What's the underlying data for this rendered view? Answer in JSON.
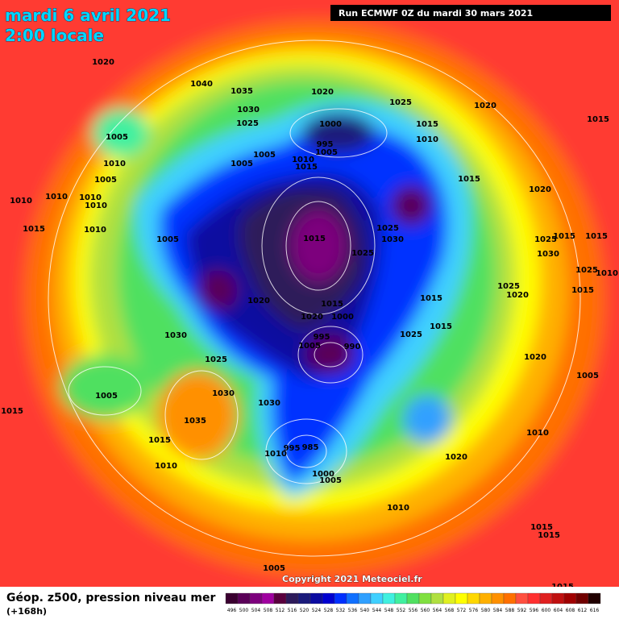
{
  "header": {
    "date": "mardi 6 avril 2021",
    "time": "2:00 locale",
    "run": "Run ECMWF 0Z du mardi 30 mars 2021"
  },
  "footer": {
    "title": "Géop. z500, pression niveau mer",
    "lead": "(+168h)",
    "copyright": "Copyright 2021 Meteociel.fr"
  },
  "legend": {
    "items": [
      {
        "value": 496,
        "color": "#3a0030"
      },
      {
        "value": 500,
        "color": "#5a0058"
      },
      {
        "value": 504,
        "color": "#7d007d"
      },
      {
        "value": 508,
        "color": "#a000a0"
      },
      {
        "value": 512,
        "color": "#5a003e"
      },
      {
        "value": 516,
        "color": "#2d1a5a"
      },
      {
        "value": 520,
        "color": "#1a1a7a"
      },
      {
        "value": 524,
        "color": "#0a0aa0"
      },
      {
        "value": 528,
        "color": "#0000d0"
      },
      {
        "value": 532,
        "color": "#0030ff"
      },
      {
        "value": 536,
        "color": "#1070ff"
      },
      {
        "value": 540,
        "color": "#30a0ff"
      },
      {
        "value": 544,
        "color": "#40d0ff"
      },
      {
        "value": 548,
        "color": "#40f0e0"
      },
      {
        "value": 552,
        "color": "#40f0a0"
      },
      {
        "value": 556,
        "color": "#50e060"
      },
      {
        "value": 560,
        "color": "#80e040"
      },
      {
        "value": 564,
        "color": "#b0e040"
      },
      {
        "value": 568,
        "color": "#e0f020"
      },
      {
        "value": 572,
        "color": "#ffff00"
      },
      {
        "value": 576,
        "color": "#ffd800"
      },
      {
        "value": 580,
        "color": "#ffb000"
      },
      {
        "value": 584,
        "color": "#ff9000"
      },
      {
        "value": 588,
        "color": "#ff7000"
      },
      {
        "value": 592,
        "color": "#ff5040"
      },
      {
        "value": 596,
        "color": "#ff3030"
      },
      {
        "value": 600,
        "color": "#e02020"
      },
      {
        "value": 604,
        "color": "#c01010"
      },
      {
        "value": 608,
        "color": "#a00000"
      },
      {
        "value": 612,
        "color": "#700000"
      },
      {
        "value": 616,
        "color": "#200000"
      }
    ]
  },
  "isobar_labels": [
    "1020",
    "1040",
    "1035",
    "1020",
    "1030",
    "1025",
    "1025",
    "1020",
    "1015",
    "1000",
    "1005",
    "995",
    "1005",
    "1015",
    "1010",
    "1005",
    "1005",
    "1010",
    "1015",
    "1010",
    "1005",
    "1015",
    "1010",
    "1010",
    "1010",
    "1010",
    "1020",
    "1015",
    "1010",
    "1005",
    "1015",
    "1025",
    "1030",
    "1025",
    "1025",
    "1015",
    "1030",
    "1015",
    "1025",
    "1010",
    "1025",
    "1020",
    "1015",
    "1015",
    "1015",
    "1020",
    "1020",
    "1000",
    "995",
    "1005",
    "990",
    "1015",
    "1025",
    "1030",
    "1025",
    "1020",
    "1005",
    "1005",
    "1030",
    "1030",
    "1035",
    "1015",
    "1010",
    "1015",
    "985",
    "995",
    "1010",
    "1020",
    "1010",
    "1000",
    "1005",
    "1010",
    "1015",
    "1015",
    "1005",
    "1015"
  ]
}
